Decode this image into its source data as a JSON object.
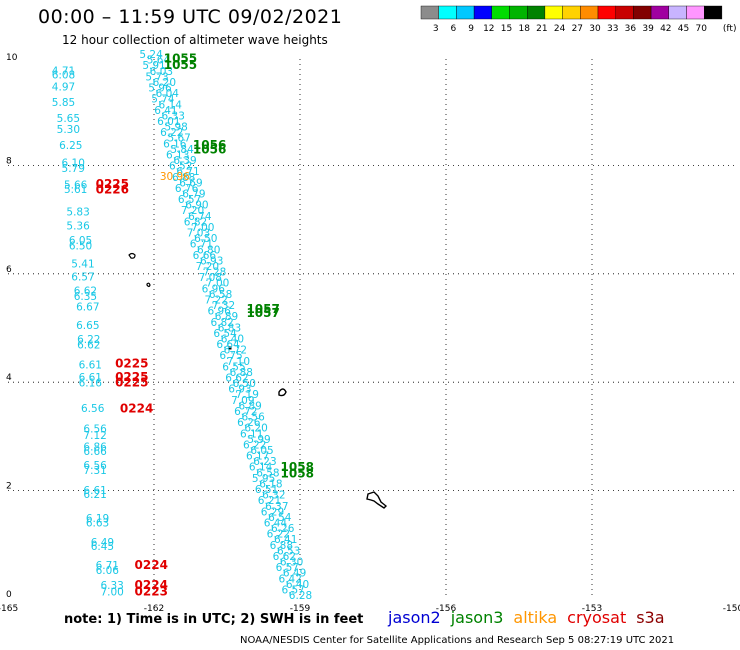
{
  "header": {
    "title": "00:00 – 11:59 UTC 09/02/2021",
    "subtitle": "12 hour collection of altimeter wave heights"
  },
  "legend": {
    "unit": "(ft)",
    "bins": [
      {
        "label": "3",
        "color": "#8c8c8c"
      },
      {
        "label": "6",
        "color": "#00ffff"
      },
      {
        "label": "9",
        "color": "#00c8ff"
      },
      {
        "label": "12",
        "color": "#0000ff"
      },
      {
        "label": "15",
        "color": "#00dc00"
      },
      {
        "label": "18",
        "color": "#00b400"
      },
      {
        "label": "21",
        "color": "#008200"
      },
      {
        "label": "24",
        "color": "#ffff00"
      },
      {
        "label": "27",
        "color": "#ffd200"
      },
      {
        "label": "30",
        "color": "#ff8c00"
      },
      {
        "label": "33",
        "color": "#ff0000"
      },
      {
        "label": "36",
        "color": "#c80000"
      },
      {
        "label": "39",
        "color": "#820000"
      },
      {
        "label": "42",
        "color": "#a000a0"
      },
      {
        "label": "45",
        "color": "#c8b4ff"
      },
      {
        "label": "70",
        "color": "#ff96ff"
      },
      {
        "label": "",
        "color": "#000000"
      }
    ]
  },
  "axes": {
    "x_ticks": [
      "-165",
      "-162",
      "-159",
      "-156",
      "-153",
      "-150"
    ],
    "y_ticks": [
      "0",
      "2",
      "4",
      "6",
      "8",
      "10"
    ]
  },
  "colors": {
    "swh_cyan": "#19c8e6",
    "jason3_green": "#008200",
    "cryosat_red": "#e00000",
    "altika_orange": "#ff9600",
    "jason2_blue": "#0000d2",
    "s3a_darkred": "#8c0000"
  },
  "time_labels": [
    {
      "text": "1055",
      "lon": -161.8,
      "lat": 9.9,
      "color": "green"
    },
    {
      "text": "1055",
      "lon": -161.8,
      "lat": 9.78,
      "color": "green"
    },
    {
      "text": "1056",
      "lon": -161.2,
      "lat": 8.3,
      "color": "green"
    },
    {
      "text": "1056",
      "lon": -161.2,
      "lat": 8.22,
      "color": "green"
    },
    {
      "text": "1057",
      "lon": -160.1,
      "lat": 5.28,
      "color": "green"
    },
    {
      "text": "1057",
      "lon": -160.1,
      "lat": 5.2,
      "color": "green"
    },
    {
      "text": "1058",
      "lon": -159.4,
      "lat": 2.36,
      "color": "green"
    },
    {
      "text": "1058",
      "lon": -159.4,
      "lat": 2.24,
      "color": "green"
    },
    {
      "text": "0225",
      "lon": -163.2,
      "lat": 7.58,
      "color": "red"
    },
    {
      "text": "0226",
      "lon": -163.2,
      "lat": 7.48,
      "color": "red"
    },
    {
      "text": "0225",
      "lon": -162.8,
      "lat": 4.27,
      "color": "red"
    },
    {
      "text": "0225",
      "lon": -162.8,
      "lat": 4.02,
      "color": "red"
    },
    {
      "text": "0225",
      "lon": -162.8,
      "lat": 3.92,
      "color": "red"
    },
    {
      "text": "0224",
      "lon": -162.7,
      "lat": 3.44,
      "color": "red"
    },
    {
      "text": "0224",
      "lon": -162.4,
      "lat": 0.55,
      "color": "red"
    },
    {
      "text": "0224",
      "lon": -162.4,
      "lat": 0.18,
      "color": "red"
    },
    {
      "text": "0223",
      "lon": -162.4,
      "lat": 0.06,
      "color": "red"
    }
  ],
  "swh_left": [
    {
      "text": "4.71",
      "lon": -164.1,
      "lat": 9.68
    },
    {
      "text": "6.08",
      "lon": -164.1,
      "lat": 9.6
    },
    {
      "text": "4.97",
      "lon": -164.1,
      "lat": 9.38
    },
    {
      "text": "5.85",
      "lon": -164.1,
      "lat": 9.1
    },
    {
      "text": "5.65",
      "lon": -164.0,
      "lat": 8.8
    },
    {
      "text": "5.30",
      "lon": -164.0,
      "lat": 8.6
    },
    {
      "text": "6.25",
      "lon": -163.95,
      "lat": 8.3
    },
    {
      "text": "6.10",
      "lon": -163.9,
      "lat": 7.98
    },
    {
      "text": "5.79",
      "lon": -163.9,
      "lat": 7.88
    },
    {
      "text": "5.66",
      "lon": -163.85,
      "lat": 7.57
    },
    {
      "text": "5.61",
      "lon": -163.85,
      "lat": 7.49
    },
    {
      "text": "5.83",
      "lon": -163.8,
      "lat": 7.08
    },
    {
      "text": "5.36",
      "lon": -163.8,
      "lat": 6.82
    },
    {
      "text": "6.05",
      "lon": -163.75,
      "lat": 6.55
    },
    {
      "text": "6.50",
      "lon": -163.75,
      "lat": 6.45
    },
    {
      "text": "5.41",
      "lon": -163.7,
      "lat": 6.12
    },
    {
      "text": "6.57",
      "lon": -163.7,
      "lat": 5.88
    },
    {
      "text": "6.62",
      "lon": -163.65,
      "lat": 5.62
    },
    {
      "text": "6.35",
      "lon": -163.65,
      "lat": 5.52
    },
    {
      "text": "6.67",
      "lon": -163.6,
      "lat": 5.32
    },
    {
      "text": "6.65",
      "lon": -163.6,
      "lat": 4.98
    },
    {
      "text": "6.22",
      "lon": -163.58,
      "lat": 4.72
    },
    {
      "text": "6.62",
      "lon": -163.58,
      "lat": 4.62
    },
    {
      "text": "6.61",
      "lon": -163.55,
      "lat": 4.25
    },
    {
      "text": "6.61",
      "lon": -163.55,
      "lat": 4.02
    },
    {
      "text": "6.16",
      "lon": -163.55,
      "lat": 3.92
    },
    {
      "text": "6.56",
      "lon": -163.5,
      "lat": 3.45
    },
    {
      "text": "6.56",
      "lon": -163.45,
      "lat": 3.07
    },
    {
      "text": "7.12",
      "lon": -163.45,
      "lat": 2.95
    },
    {
      "text": "6.86",
      "lon": -163.45,
      "lat": 2.74
    },
    {
      "text": "6.66",
      "lon": -163.45,
      "lat": 2.66
    },
    {
      "text": "6.56",
      "lon": -163.45,
      "lat": 2.4
    },
    {
      "text": "7.31",
      "lon": -163.45,
      "lat": 2.31
    },
    {
      "text": "6.61",
      "lon": -163.45,
      "lat": 1.94
    },
    {
      "text": "6.21",
      "lon": -163.45,
      "lat": 1.86
    },
    {
      "text": "6.19",
      "lon": -163.4,
      "lat": 1.42
    },
    {
      "text": "6.63",
      "lon": -163.4,
      "lat": 1.34
    },
    {
      "text": "6.49",
      "lon": -163.3,
      "lat": 0.98
    },
    {
      "text": "6.45",
      "lon": -163.3,
      "lat": 0.9
    },
    {
      "text": "6.71",
      "lon": -163.2,
      "lat": 0.55
    },
    {
      "text": "6.06",
      "lon": -163.2,
      "lat": 0.46
    },
    {
      "text": "6.33",
      "lon": -163.1,
      "lat": 0.18
    },
    {
      "text": "7.00",
      "lon": -163.1,
      "lat": 0.06
    }
  ],
  "swh_track": [
    "5.24",
    "5.64",
    "5.91",
    "6.03",
    "5.73",
    "6.20",
    "5.96",
    "6.04",
    "5.74",
    "6.14",
    "6.41",
    "6.33",
    "6.01",
    "5.98",
    "6.22",
    "5.67",
    "6.16",
    "5.84",
    "6.13",
    "6.39",
    "6.52",
    "6.71",
    "6.88",
    "6.69",
    "6.76",
    "6.79",
    "6.57",
    "6.90",
    "7.20",
    "6.74",
    "6.82",
    "7.00",
    "7.03",
    "6.50",
    "6.71",
    "6.80",
    "6.66",
    "6.93",
    "7.20",
    "7.28",
    "7.08",
    "7.00",
    "6.96",
    "6.58",
    "7.22",
    "7.32",
    "6.96",
    "6.89",
    "6.82",
    "6.83",
    "6.54",
    "6.40",
    "6.64",
    "6.72",
    "6.75",
    "7.10",
    "6.55",
    "6.88",
    "6.62",
    "6.50",
    "6.93",
    "7.19",
    "7.09",
    "6.89",
    "6.72",
    "6.56",
    "6.26",
    "6.20",
    "6.11",
    "5.99",
    "6.22",
    "6.05",
    "6.17",
    "6.23",
    "6.14",
    "6.58",
    "5.95",
    "6.18",
    "6.51",
    "6.32",
    "6.21",
    "6.37",
    "6.29",
    "6.54",
    "6.44",
    "6.26",
    "6.22",
    "6.41",
    "6.88",
    "6.53",
    "6.62",
    "6.30",
    "6.57",
    "6.49",
    "6.42",
    "6.40",
    "6.57",
    "6.28"
  ],
  "swh_track_extra": [
    {
      "text": "30.96",
      "lon": -161.88,
      "lat": 7.73,
      "color": "orange"
    }
  ],
  "footer": {
    "note": "note: 1) Time is in UTC; 2) SWH is in feet",
    "missions": [
      {
        "label": "jason2",
        "color": "blue"
      },
      {
        "label": "jason3",
        "color": "green"
      },
      {
        "label": "altika",
        "color": "orange"
      },
      {
        "label": "cryosat",
        "color": "red"
      },
      {
        "label": "s3a",
        "color": "darkred"
      }
    ],
    "credit": "NOAA/NESDIS Center for Satellite Applications and Research    Sep  5 08:27:19 UTC 2021"
  }
}
